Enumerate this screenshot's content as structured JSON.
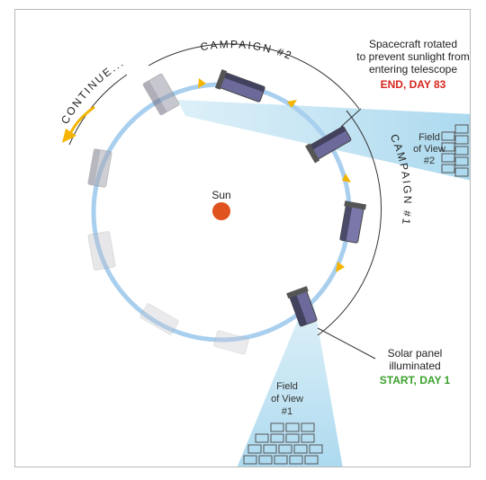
{
  "labels": {
    "sun": "Sun",
    "campaign1": "CAMPAIGN #1",
    "campaign2": "CAMPAIGN #2",
    "continue": "CONTINUE...",
    "rotated_line1": "Spacecraft rotated",
    "rotated_line2": "to prevent sunlight from",
    "rotated_line3": "entering telescope",
    "end_label": "END, DAY 83",
    "fov2_line1": "Field",
    "fov2_line2": "of View",
    "fov2_line3": "#2",
    "fov1_line1": "Field",
    "fov1_line2": "of View",
    "fov1_line3": "#1",
    "solar_line1": "Solar panel",
    "solar_line2": "illuminated",
    "start_label": "START, DAY 1"
  },
  "colors": {
    "orbit": "#a9cfee",
    "beam": "#bfe3f2",
    "arrow": "#f4b400",
    "sun": "#e0531f",
    "end": "#d7261e",
    "start": "#3aa12c",
    "text": "#222222"
  }
}
